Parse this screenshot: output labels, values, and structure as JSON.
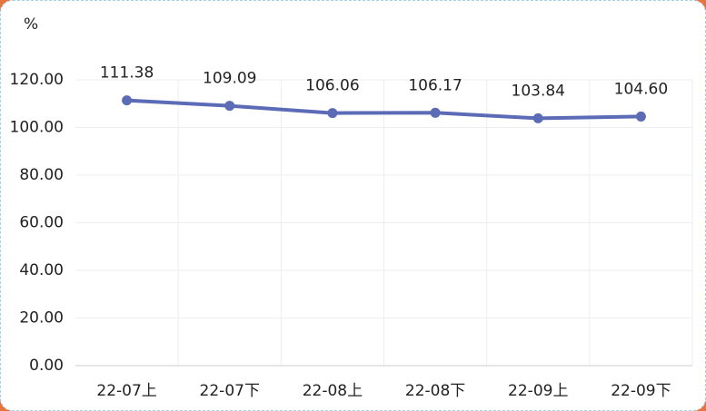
{
  "chart_data": {
    "type": "line",
    "y_unit": "%",
    "categories": [
      "22-07上",
      "22-07下",
      "22-08上",
      "22-08下",
      "22-09上",
      "22-09下"
    ],
    "series": [
      {
        "name": null,
        "color": "#5b6bb5",
        "values": [
          111.38,
          109.09,
          106.06,
          106.17,
          103.84,
          104.6
        ],
        "value_labels": [
          "111.38",
          "109.09",
          "106.06",
          "106.17",
          "103.84",
          "104.60"
        ]
      }
    ],
    "ylim": [
      0,
      120
    ],
    "yticks": [
      {
        "value": 0,
        "label": "0.00"
      },
      {
        "value": 20,
        "label": "20.00"
      },
      {
        "value": 40,
        "label": "40.00"
      },
      {
        "value": 60,
        "label": "60.00"
      },
      {
        "value": 80,
        "label": "80.00"
      },
      {
        "value": 100,
        "label": "100.00"
      },
      {
        "value": 120,
        "label": "120.00"
      }
    ],
    "grid": true
  }
}
